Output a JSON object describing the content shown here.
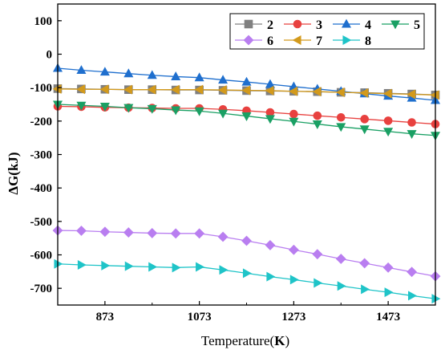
{
  "chart_data": {
    "type": "line",
    "title": "",
    "xlabel_prefix": "Temperature(",
    "xlabel_unit": "K",
    "xlabel_suffix": ")",
    "ylabel": "ΔG(kJ)",
    "xlim": [
      773,
      1573
    ],
    "ylim": [
      -750,
      150
    ],
    "xticks": [
      873,
      1073,
      1273,
      1473
    ],
    "yticks": [
      100,
      0,
      -100,
      -200,
      -300,
      -400,
      -500,
      -600,
      -700
    ],
    "legend_position": "top-right",
    "x": [
      773,
      823,
      873,
      923,
      973,
      1023,
      1073,
      1123,
      1173,
      1223,
      1273,
      1323,
      1373,
      1423,
      1473,
      1523,
      1573
    ],
    "series": [
      {
        "name": "2",
        "color": "#808080",
        "marker": "square",
        "values": [
          -103,
          -104,
          -105,
          -106,
          -106,
          -107,
          -107,
          -108,
          -109,
          -110,
          -111,
          -112,
          -114,
          -115,
          -117,
          -119,
          -122
        ]
      },
      {
        "name": "3",
        "color": "#e8413f",
        "marker": "circle",
        "values": [
          -156,
          -157,
          -159,
          -160,
          -161,
          -162,
          -162,
          -165,
          -169,
          -174,
          -179,
          -184,
          -189,
          -194,
          -199,
          -204,
          -209
        ]
      },
      {
        "name": "4",
        "color": "#1f6fce",
        "marker": "triangle-up",
        "values": [
          -42,
          -48,
          -53,
          -58,
          -63,
          -67,
          -70,
          -77,
          -83,
          -90,
          -97,
          -104,
          -111,
          -118,
          -125,
          -131,
          -138
        ]
      },
      {
        "name": "5",
        "color": "#1aa064",
        "marker": "triangle-down",
        "values": [
          -150,
          -153,
          -156,
          -160,
          -163,
          -167,
          -170,
          -177,
          -185,
          -193,
          -201,
          -209,
          -217,
          -224,
          -231,
          -238,
          -243
        ]
      },
      {
        "name": "6",
        "color": "#b97ef0",
        "marker": "diamond",
        "values": [
          -527,
          -528,
          -531,
          -533,
          -535,
          -536,
          -536,
          -546,
          -558,
          -571,
          -585,
          -598,
          -612,
          -625,
          -638,
          -651,
          -664
        ]
      },
      {
        "name": "7",
        "color": "#d39a1c",
        "marker": "triangle-left",
        "values": [
          -104,
          -105,
          -105,
          -106,
          -106,
          -106,
          -106,
          -107,
          -108,
          -109,
          -111,
          -112,
          -114,
          -116,
          -118,
          -120,
          -122
        ]
      },
      {
        "name": "8",
        "color": "#1fc4c8",
        "marker": "triangle-right",
        "values": [
          -627,
          -630,
          -632,
          -634,
          -636,
          -638,
          -636,
          -645,
          -655,
          -665,
          -674,
          -684,
          -693,
          -703,
          -712,
          -722,
          -731
        ]
      }
    ]
  }
}
